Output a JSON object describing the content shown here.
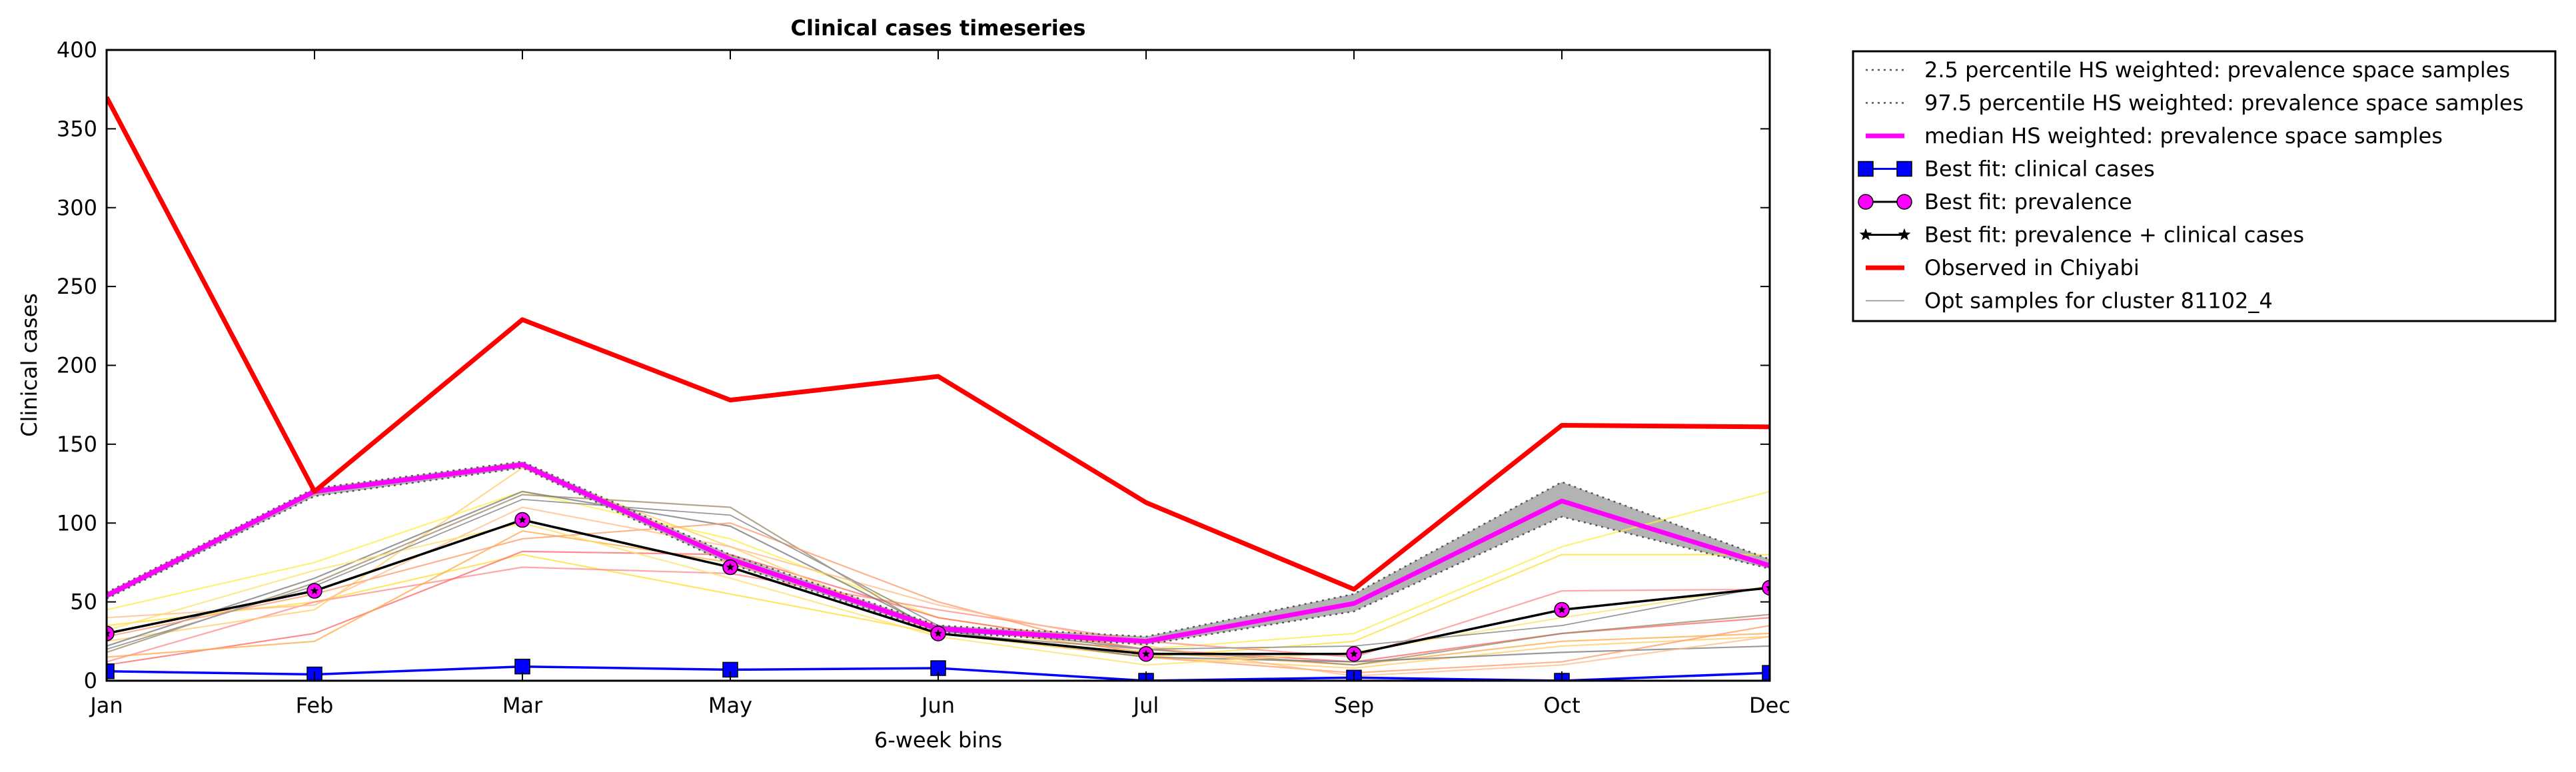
{
  "chart_data": {
    "type": "line",
    "title": "Clinical cases timeseries",
    "xlabel": "6-week bins",
    "ylabel": "Clinical cases",
    "categories": [
      "Jan",
      "Feb",
      "Mar",
      "May",
      "Jun",
      "Jul",
      "Sep",
      "Oct",
      "Dec"
    ],
    "ylim": [
      0,
      400
    ],
    "yticks": [
      0,
      50,
      100,
      150,
      200,
      250,
      300,
      350,
      400
    ],
    "grid": false,
    "legend_position": "outside-top-right",
    "band": {
      "lower": [
        52,
        117,
        135,
        74,
        31,
        23,
        44,
        104,
        71
      ],
      "upper": [
        56,
        122,
        139,
        80,
        35,
        28,
        55,
        126,
        77
      ],
      "color": "#b3b3b3"
    },
    "series": [
      {
        "name": "2.5 percentile HS weighted: prevalence space samples",
        "style": "dotted",
        "color": "#555555",
        "values": [
          52,
          117,
          135,
          74,
          31,
          23,
          44,
          104,
          71
        ]
      },
      {
        "name": "97.5 percentile HS weighted: prevalence space samples",
        "style": "dotted",
        "color": "#555555",
        "values": [
          56,
          122,
          139,
          80,
          35,
          28,
          55,
          126,
          77
        ]
      },
      {
        "name": "median HS weighted: prevalence space samples",
        "style": "thick",
        "color": "#ff00ff",
        "values": [
          54,
          120,
          137,
          77,
          33,
          25,
          49,
          114,
          73
        ]
      },
      {
        "name": "Best fit: clinical cases",
        "style": "marker-square",
        "color": "#0000ff",
        "values": [
          6,
          4,
          9,
          7,
          8,
          0,
          2,
          0,
          5
        ]
      },
      {
        "name": "Best fit: prevalence",
        "style": "marker-circle",
        "color": "#ff00ff",
        "values": [
          30,
          57,
          102,
          72,
          30,
          17,
          17,
          45,
          59
        ]
      },
      {
        "name": "Best fit: prevalence + clinical cases",
        "style": "marker-star",
        "color": "#000000",
        "values": [
          30,
          57,
          102,
          72,
          30,
          17,
          17,
          45,
          59
        ]
      },
      {
        "name": "Observed in Chiyabi",
        "style": "thick",
        "color": "#ff0000",
        "values": [
          370,
          120,
          229,
          178,
          193,
          113,
          58,
          162,
          161
        ]
      },
      {
        "name": "Opt samples for cluster 81102_4",
        "style": "thin",
        "color": "#999999",
        "values": [
          20,
          60,
          115,
          105,
          35,
          20,
          22,
          35,
          60
        ]
      }
    ],
    "sample_lines": [
      {
        "color": "#ffee44",
        "values": [
          45,
          75,
          120,
          90,
          40,
          20,
          30,
          85,
          120
        ]
      },
      {
        "color": "#ffdd33",
        "values": [
          35,
          50,
          80,
          55,
          30,
          15,
          25,
          80,
          80
        ]
      },
      {
        "color": "#ff8888",
        "values": [
          12,
          50,
          72,
          68,
          45,
          25,
          15,
          57,
          58
        ]
      },
      {
        "color": "#ff6666",
        "values": [
          10,
          30,
          82,
          80,
          40,
          20,
          12,
          30,
          40
        ]
      },
      {
        "color": "#ffaa44",
        "values": [
          15,
          25,
          95,
          75,
          35,
          18,
          10,
          25,
          30
        ]
      },
      {
        "color": "#ffcc66",
        "values": [
          25,
          45,
          135,
          85,
          30,
          15,
          8,
          22,
          28
        ]
      },
      {
        "color": "#998866",
        "values": [
          18,
          62,
          118,
          110,
          30,
          20,
          10,
          30,
          42
        ]
      },
      {
        "color": "#777777",
        "values": [
          22,
          65,
          120,
          98,
          32,
          15,
          12,
          18,
          22
        ]
      },
      {
        "color": "#ff9966",
        "values": [
          28,
          55,
          90,
          100,
          50,
          15,
          5,
          12,
          35
        ]
      },
      {
        "color": "#ffbb88",
        "values": [
          40,
          48,
          110,
          85,
          48,
          22,
          3,
          10,
          28
        ]
      },
      {
        "color": "#ffe066",
        "values": [
          32,
          70,
          100,
          65,
          28,
          10,
          18,
          40,
          60
        ]
      }
    ]
  }
}
